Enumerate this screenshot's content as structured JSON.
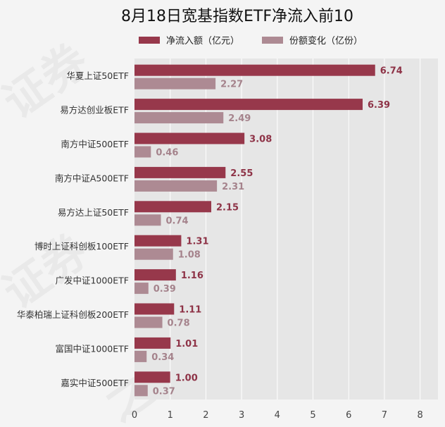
{
  "colors": {
    "net_inflow": "#97384b",
    "share_change": "#ad8a93",
    "plot_bg": "#e6e6e6",
    "grid": "#ffffff"
  },
  "chart_data": {
    "type": "bar",
    "orientation": "horizontal",
    "title": "8月18日宽基指数ETF净流入前10",
    "xlabel": "",
    "ylabel": "",
    "xlim": [
      0,
      8.5
    ],
    "xticks": [
      0,
      1,
      2,
      3,
      4,
      5,
      6,
      7,
      8
    ],
    "grid": true,
    "legend_position": "top",
    "categories": [
      "华夏上证50ETF",
      "易方达创业板ETF",
      "南方中证500ETF",
      "南方中证A500ETF",
      "易方达上证50ETF",
      "博时上证科创板100ETF",
      "广发中证1000ETF",
      "华泰柏瑞上证科创板200ETF",
      "富国中证1000ETF",
      "嘉实中证500ETF"
    ],
    "series": [
      {
        "name": "净流入额（亿元）",
        "values": [
          6.74,
          6.39,
          3.08,
          2.55,
          2.15,
          1.31,
          1.16,
          1.11,
          1.01,
          1.0
        ],
        "labels": [
          "6.74",
          "6.39",
          "3.08",
          "2.55",
          "2.15",
          "1.31",
          "1.16",
          "1.11",
          "1.01",
          "1.00"
        ]
      },
      {
        "name": "份额变化（亿份）",
        "values": [
          2.27,
          2.49,
          0.46,
          2.31,
          0.74,
          1.08,
          0.39,
          0.78,
          0.34,
          0.37
        ],
        "labels": [
          "2.27",
          "2.49",
          "0.46",
          "2.31",
          "0.74",
          "1.08",
          "0.39",
          "0.78",
          "0.34",
          "0.37"
        ]
      }
    ]
  },
  "watermark": [
    "证券",
    "之星"
  ]
}
